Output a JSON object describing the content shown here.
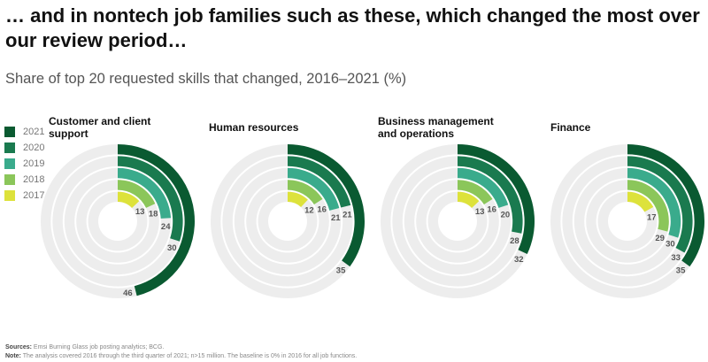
{
  "title": "… and in nontech job families such as these, which changed the most over our review period…",
  "subtitle": "Share of top 20 requested skills that changed, 2016–2021 (%)",
  "colors": {
    "2021": "#0a5a31",
    "2020": "#1a7a4f",
    "2019": "#3aab8c",
    "2018": "#8bc65a",
    "2017": "#dde23b",
    "track": "#ededed"
  },
  "chart_data": {
    "type": "radial-bar",
    "legend": [
      "2021",
      "2020",
      "2019",
      "2018",
      "2017"
    ],
    "scale_max": 100,
    "panels": [
      {
        "title": "Customer and client support",
        "values": {
          "2017": 13,
          "2018": 18,
          "2019": 24,
          "2020": 30,
          "2021": 46
        }
      },
      {
        "title": "Human resources",
        "values": {
          "2017": 12,
          "2018": 16,
          "2019": 21,
          "2020": 21,
          "2021": 35
        }
      },
      {
        "title": "Business management and operations",
        "values": {
          "2017": 13,
          "2018": 16,
          "2019": 20,
          "2020": 28,
          "2021": 32
        }
      },
      {
        "title": "Finance",
        "values": {
          "2017": 17,
          "2018": 29,
          "2019": 30,
          "2020": 33,
          "2021": 35
        }
      }
    ]
  },
  "footer": {
    "sources_label": "Sources:",
    "sources": " Emsi Burning Glass job posting analytics; BCG.",
    "note_label": "Note:",
    "note": " The analysis covered 2016 through the third quarter of 2021; n>15 million. The baseline is 0% in 2016 for all job functions."
  }
}
